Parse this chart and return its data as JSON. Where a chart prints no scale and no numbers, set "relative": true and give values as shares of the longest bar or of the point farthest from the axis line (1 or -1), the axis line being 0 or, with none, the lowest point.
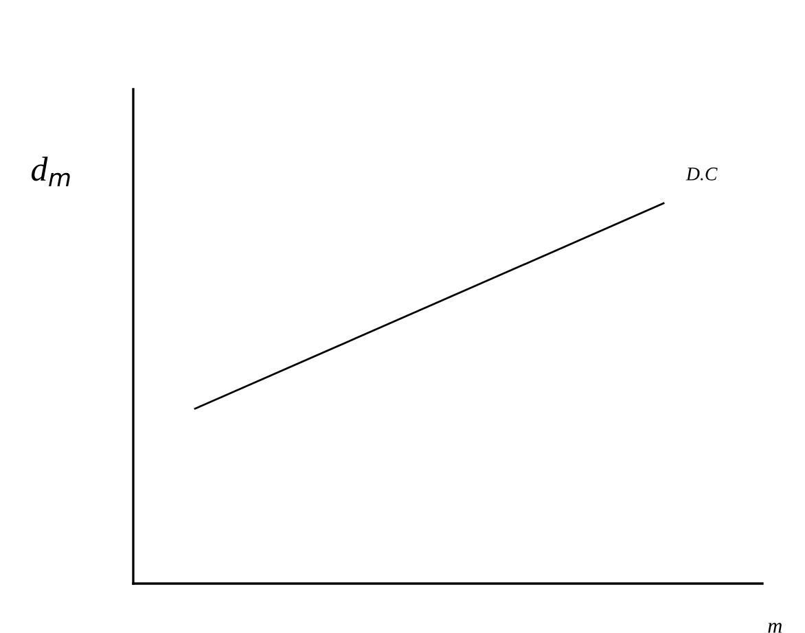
{
  "chart_data": {
    "type": "line",
    "relative": true,
    "xlabel": "m",
    "ylabel": "d$_{m}$",
    "categories": [
      null,
      null
    ],
    "series": [
      {
        "name": "D.C",
        "color": "#000000",
        "values": [
          0.46,
          1
        ]
      }
    ],
    "marker": "none",
    "line_style": "solid",
    "tick_labels": false
  }
}
